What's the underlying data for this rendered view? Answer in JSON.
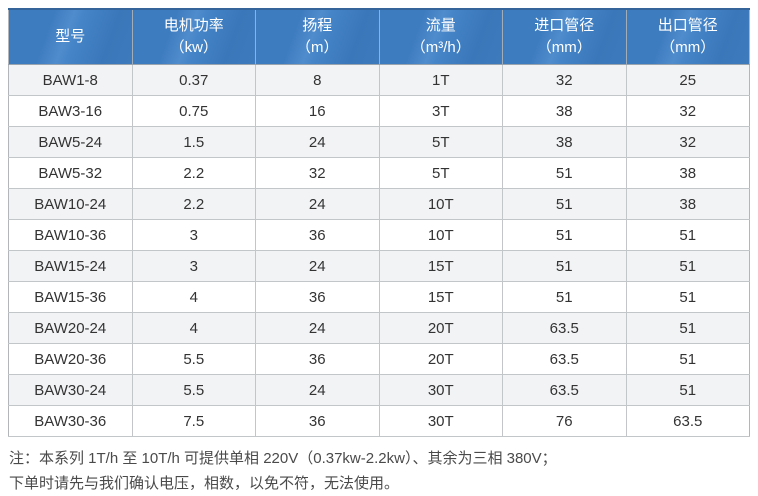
{
  "table": {
    "columns": [
      {
        "key": "model",
        "label": "型号",
        "unit": ""
      },
      {
        "key": "power",
        "label": "电机功率",
        "unit": "（kw）"
      },
      {
        "key": "head",
        "label": "扬程",
        "unit": "（m）"
      },
      {
        "key": "flow",
        "label": "流量",
        "unit": "（m³/h）"
      },
      {
        "key": "inlet",
        "label": "进口管径",
        "unit": "（mm）"
      },
      {
        "key": "outlet",
        "label": "出口管径",
        "unit": "（mm）"
      }
    ],
    "rows": [
      [
        "BAW1-8",
        "0.37",
        "8",
        "1T",
        "32",
        "25"
      ],
      [
        "BAW3-16",
        "0.75",
        "16",
        "3T",
        "38",
        "32"
      ],
      [
        "BAW5-24",
        "1.5",
        "24",
        "5T",
        "38",
        "32"
      ],
      [
        "BAW5-32",
        "2.2",
        "32",
        "5T",
        "51",
        "38"
      ],
      [
        "BAW10-24",
        "2.2",
        "24",
        "10T",
        "51",
        "38"
      ],
      [
        "BAW10-36",
        "3",
        "36",
        "10T",
        "51",
        "51"
      ],
      [
        "BAW15-24",
        "3",
        "24",
        "15T",
        "51",
        "51"
      ],
      [
        "BAW15-36",
        "4",
        "36",
        "15T",
        "51",
        "51"
      ],
      [
        "BAW20-24",
        "4",
        "24",
        "20T",
        "63.5",
        "51"
      ],
      [
        "BAW20-36",
        "5.5",
        "36",
        "20T",
        "63.5",
        "51"
      ],
      [
        "BAW30-24",
        "5.5",
        "24",
        "30T",
        "63.5",
        "51"
      ],
      [
        "BAW30-36",
        "7.5",
        "36",
        "30T",
        "76",
        "63.5"
      ]
    ]
  },
  "notes": {
    "line1": "注：本系列 1T/h 至 10T/h 可提供单相 220V（0.37kw-2.2kw）、其余为三相 380V；",
    "line2": "下单时请先与我们确认电压，相数，以免不符，无法使用。"
  },
  "colors": {
    "header_blue": "#3e7cc0",
    "header_blue_sheen": "#4f8ccd",
    "header_top_border": "#35649b",
    "row_alt_background": "#f2f3f5",
    "grid_border": "#c3c6c9",
    "body_text": "#333333",
    "note_text": "#4a4a4a"
  }
}
